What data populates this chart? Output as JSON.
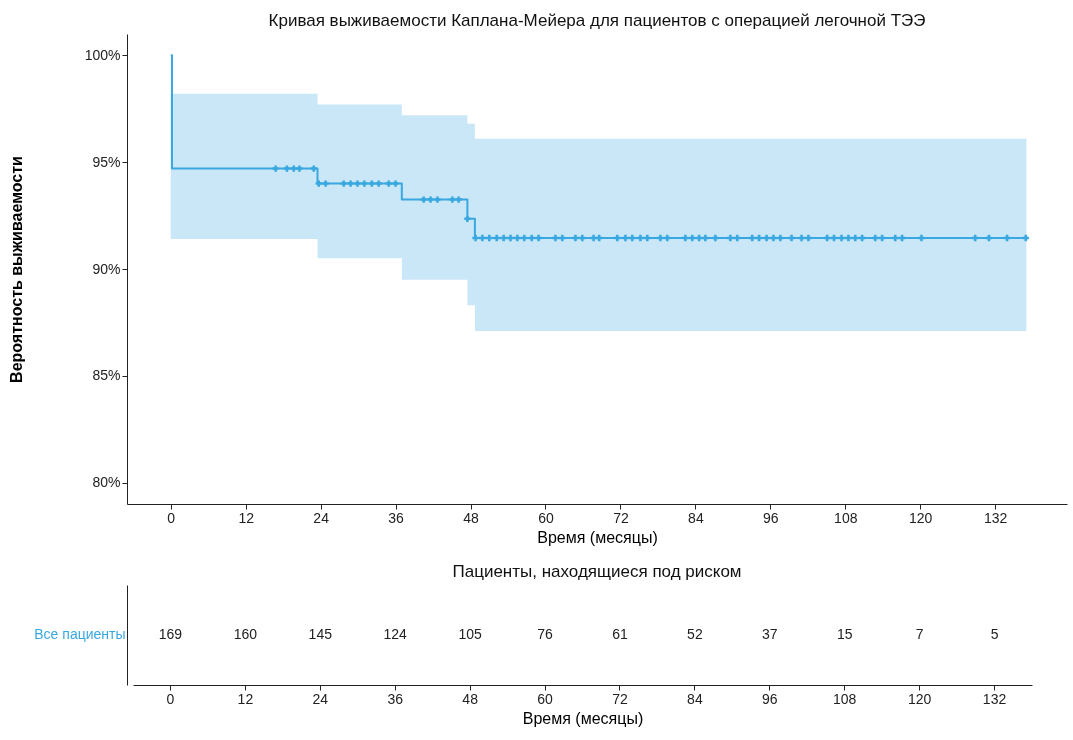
{
  "chart_data": [
    {
      "type": "step",
      "title": "Кривая выживаемости Каплана-Мейера для пациентов с операцией легочной ТЭЭ",
      "xlabel": "Время (месяцы)",
      "ylabel": "Вероятность выживаемости",
      "xlim": [
        -7,
        143.5
      ],
      "xticks": [
        0,
        12,
        24,
        36,
        48,
        60,
        72,
        84,
        96,
        108,
        120,
        132
      ],
      "ylim": [
        79,
        101
      ],
      "yticks": [
        {
          "value": 80,
          "label": "80%"
        },
        {
          "value": 85,
          "label": "85%"
        },
        {
          "value": 90,
          "label": "90%"
        },
        {
          "value": 95,
          "label": "95%"
        },
        {
          "value": 100,
          "label": "100%"
        }
      ],
      "series": [
        {
          "type": "step",
          "color": "#3aa8e0",
          "x": [
            0,
            0.2,
            23.5,
            37,
            47.5,
            48.7,
            137
          ],
          "values": [
            100,
            94.7,
            94.0,
            93.25,
            92.35,
            91.45,
            91.45
          ],
          "lower": [
            91.4,
            91.4,
            90.5,
            89.5,
            88.3,
            87.1,
            87.1
          ],
          "upper": [
            98.2,
            98.2,
            97.7,
            97.2,
            96.8,
            96.1,
            96.1
          ]
        },
        {
          "type": "scatter",
          "marker": "cross",
          "color": "#3aa8e0",
          "x": [
            16.8,
            18.6,
            19.7,
            20.6,
            22.9,
            23.7,
            24.8,
            27.7,
            28.8,
            29.9,
            31,
            32.2,
            33.3,
            34.9,
            36,
            40.5,
            41.6,
            42.7,
            45.1,
            46.1,
            47.5,
            48.8,
            49.9,
            51,
            52.2,
            53.3,
            54.4,
            55.5,
            56.6,
            57.8,
            58.9,
            61.6,
            62.7,
            64.8,
            65.9,
            67.7,
            68.6,
            71.5,
            72.8,
            73.9,
            75.2,
            76.3,
            78.4,
            79.5,
            82.4,
            83.5,
            84.6,
            85.6,
            87.2,
            89.6,
            90.7,
            93.1,
            94.2,
            95.4,
            96.5,
            97.6,
            99.4,
            101,
            102.1,
            105.1,
            106.2,
            107.4,
            108.5,
            109.6,
            110.7,
            112.8,
            113.9,
            116,
            117.1,
            120.2,
            128.8,
            131,
            133.9,
            136.9
          ],
          "values": [
            94.7,
            94.7,
            94.7,
            94.7,
            94.7,
            94.0,
            94.0,
            94.0,
            94.0,
            94.0,
            94.0,
            94.0,
            94.0,
            94.0,
            94.0,
            93.25,
            93.25,
            93.25,
            93.25,
            93.25,
            92.35,
            91.45,
            91.45,
            91.45,
            91.45,
            91.45,
            91.45,
            91.45,
            91.45,
            91.45,
            91.45,
            91.45,
            91.45,
            91.45,
            91.45,
            91.45,
            91.45,
            91.45,
            91.45,
            91.45,
            91.45,
            91.45,
            91.45,
            91.45,
            91.45,
            91.45,
            91.45,
            91.45,
            91.45,
            91.45,
            91.45,
            91.45,
            91.45,
            91.45,
            91.45,
            91.45,
            91.45,
            91.45,
            91.45,
            91.45,
            91.45,
            91.45,
            91.45,
            91.45,
            91.45,
            91.45,
            91.45,
            91.45,
            91.45,
            91.45,
            91.45,
            91.45,
            91.45,
            91.45
          ]
        }
      ]
    },
    {
      "type": "heatmap",
      "title": "Пациенты, находящиеся под риском",
      "xlabel": "Время (месяцы)",
      "categories": [
        "0",
        "12",
        "24",
        "36",
        "48",
        "60",
        "72",
        "84",
        "96",
        "108",
        "120",
        "132"
      ],
      "y_categories": [
        "Все пациенты"
      ],
      "data_labels": true,
      "cells": [
        [
          169,
          160,
          145,
          124,
          105,
          76,
          61,
          52,
          37,
          15,
          7,
          5
        ]
      ]
    }
  ]
}
